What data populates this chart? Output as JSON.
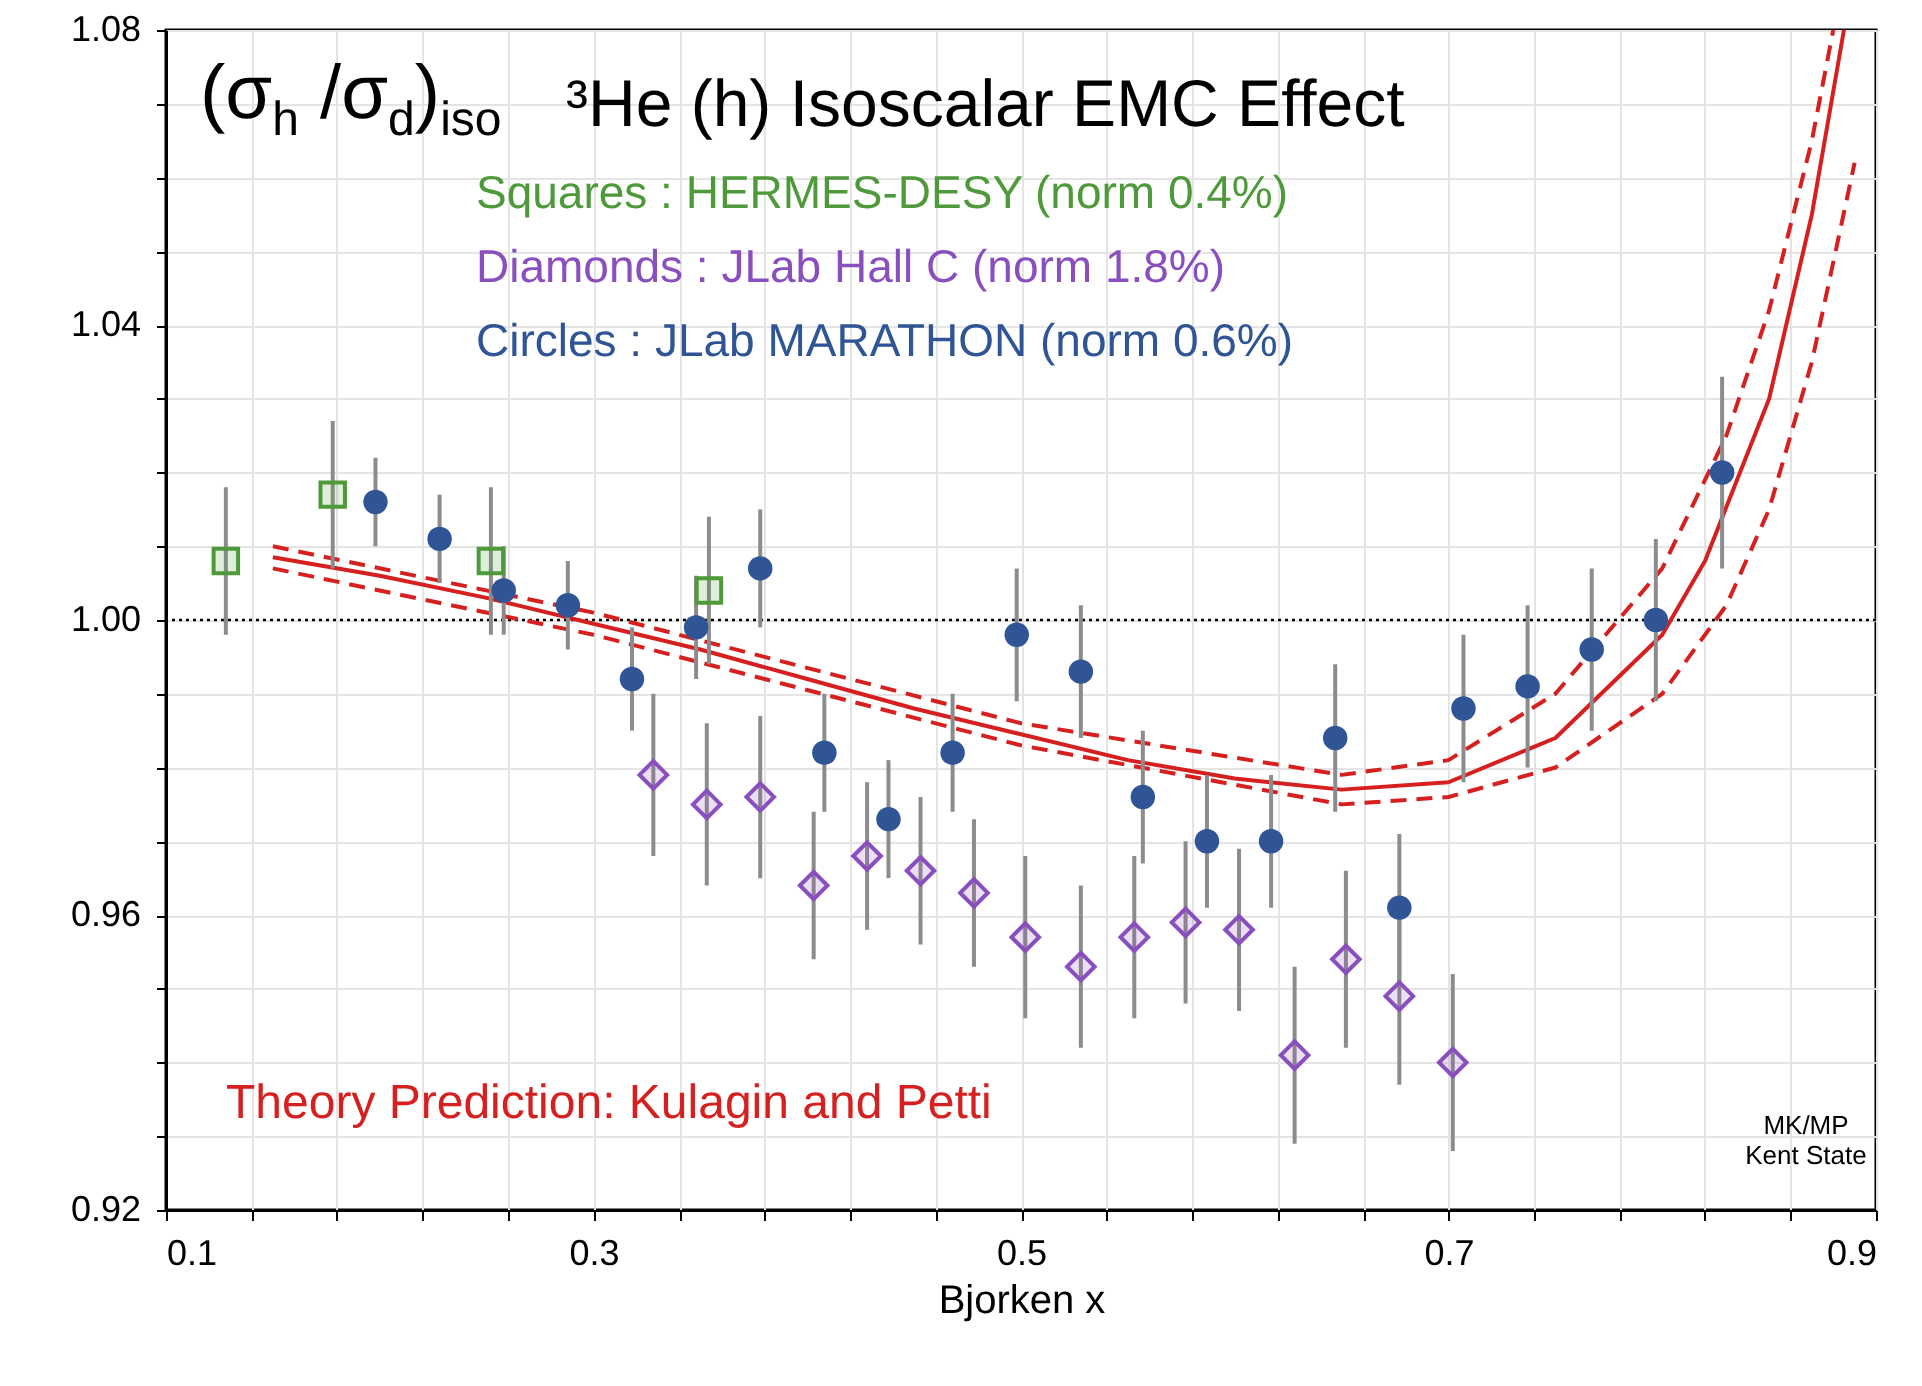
{
  "chart_data": {
    "type": "scatter",
    "title": "³He (h) Isoscalar EMC Effect",
    "xlabel": "Bjorken x",
    "xlim": [
      0.1,
      0.9
    ],
    "ylim": [
      0.92,
      1.08
    ],
    "xticks": [
      0.1,
      {
        "value": 0.14,
        "label": null
      },
      {
        "value": 0.18,
        "label": null
      },
      {
        "value": 0.22,
        "label": null
      },
      {
        "value": 0.26,
        "label": null
      },
      0.3,
      {
        "value": 0.34,
        "label": null
      },
      {
        "value": 0.38,
        "label": null
      },
      {
        "value": 0.42,
        "label": null
      },
      {
        "value": 0.46,
        "label": null
      },
      0.5,
      {
        "value": 0.54,
        "label": null
      },
      {
        "value": 0.58,
        "label": null
      },
      {
        "value": 0.62,
        "label": null
      },
      {
        "value": 0.66,
        "label": null
      },
      0.7,
      {
        "value": 0.74,
        "label": null
      },
      {
        "value": 0.78,
        "label": null
      },
      {
        "value": 0.82,
        "label": null
      },
      {
        "value": 0.86,
        "label": null
      },
      0.9
    ],
    "yticks": [
      0.92,
      {
        "value": 0.93,
        "label": null
      },
      {
        "value": 0.94,
        "label": null
      },
      {
        "value": 0.95,
        "label": null
      },
      0.96,
      {
        "value": 0.97,
        "label": null
      },
      {
        "value": 0.98,
        "label": null
      },
      {
        "value": 0.99,
        "label": null
      },
      {
        "value": 1,
        "label": "1.00"
      },
      {
        "value": 1.01,
        "label": null
      },
      {
        "value": 1.02,
        "label": null
      },
      {
        "value": 1.03,
        "label": null
      },
      1.04,
      {
        "value": 1.05,
        "label": null
      },
      {
        "value": 1.06,
        "label": null
      },
      {
        "value": 1.07,
        "label": null
      },
      1.08
    ],
    "grid": true,
    "annotations": [
      "(σ$_{h}$ /σ$_{d}$)$_{iso}$",
      "MK/MP\nKent State"
    ],
    "ref_lines": [
      {
        "axis": "y",
        "value": 1,
        "color": "#000000",
        "line_style": "dotted"
      }
    ],
    "series": [
      {
        "name": "Theory Prediction: Kulagin and Petti",
        "type": "line",
        "color": "#d62020",
        "line_style": "solid",
        "x": [
          0.15,
          0.2,
          0.25,
          0.3,
          0.35,
          0.4,
          0.45,
          0.5,
          0.55,
          0.6,
          0.65,
          0.7,
          0.75,
          0.8,
          0.82,
          0.85,
          0.87,
          0.885
        ],
        "values": [
          1.0085,
          1.006,
          1.003,
          0.9995,
          0.996,
          0.992,
          0.988,
          0.9845,
          0.981,
          0.9785,
          0.977,
          0.978,
          0.984,
          0.998,
          1.008,
          1.03,
          1.055,
          1.08
        ]
      },
      {
        "type": "line",
        "color": "#d62020",
        "line_style": "dashed",
        "x": [
          0.15,
          0.3,
          0.5,
          0.65,
          0.7,
          0.75,
          0.8,
          0.83,
          0.85,
          0.87,
          0.88
        ],
        "values": [
          1.01,
          1.001,
          0.986,
          0.979,
          0.981,
          0.99,
          1.007,
          1.025,
          1.042,
          1.065,
          1.08
        ]
      },
      {
        "type": "line",
        "color": "#d62020",
        "line_style": "dashed",
        "x": [
          0.15,
          0.3,
          0.5,
          0.65,
          0.7,
          0.75,
          0.8,
          0.83,
          0.85,
          0.87,
          0.89
        ],
        "values": [
          1.007,
          0.998,
          0.983,
          0.975,
          0.976,
          0.98,
          0.99,
          1.002,
          1.015,
          1.035,
          1.062
        ]
      },
      {
        "name": "Squares : HERMES-DESY (norm 0.4%)",
        "marker": "square",
        "color": "#4e9a3a",
        "x": [
          0.128,
          0.178,
          0.252,
          0.354
        ],
        "values": [
          1.008,
          1.017,
          1.008,
          1.004
        ],
        "errors": [
          0.01,
          0.01,
          0.01,
          0.01
        ]
      },
      {
        "name": "Diamonds : JLab Hall C (norm 1.8%)",
        "marker": "diamond",
        "color": "#8a4fbf",
        "x": [
          0.328,
          0.353,
          0.378,
          0.403,
          0.428,
          0.453,
          0.478,
          0.502,
          0.528,
          0.553,
          0.577,
          0.602,
          0.628,
          0.652,
          0.677,
          0.702
        ],
        "values": [
          0.979,
          0.975,
          0.976,
          0.964,
          0.968,
          0.966,
          0.963,
          0.957,
          0.953,
          0.957,
          0.959,
          0.958,
          0.941,
          0.954,
          0.949,
          0.94
        ],
        "errors": [
          0.011,
          0.011,
          0.011,
          0.01,
          0.01,
          0.01,
          0.01,
          0.011,
          0.011,
          0.011,
          0.011,
          0.011,
          0.012,
          0.012,
          0.012,
          0.012
        ]
      },
      {
        "name": "Circles : JLab MARATHON (norm 0.6%)",
        "marker": "circle",
        "color": "#2f5597",
        "x": [
          0.198,
          0.228,
          0.258,
          0.288,
          0.318,
          0.348,
          0.378,
          0.408,
          0.438,
          0.468,
          0.498,
          0.528,
          0.557,
          0.587,
          0.617,
          0.647,
          0.677,
          0.707,
          0.737,
          0.767,
          0.797,
          0.828
        ],
        "values": [
          1.016,
          1.011,
          1.004,
          1.002,
          0.992,
          0.999,
          1.007,
          0.982,
          0.973,
          0.982,
          0.998,
          0.993,
          0.976,
          0.97,
          0.97,
          0.984,
          0.961,
          0.988,
          0.991,
          0.996,
          1,
          1.02
        ],
        "errors": [
          0.006,
          0.006,
          0.006,
          0.006,
          0.007,
          0.007,
          0.008,
          0.008,
          0.008,
          0.008,
          0.009,
          0.009,
          0.009,
          0.009,
          0.009,
          0.01,
          0.01,
          0.01,
          0.011,
          0.011,
          0.011,
          0.013
        ]
      }
    ]
  }
}
